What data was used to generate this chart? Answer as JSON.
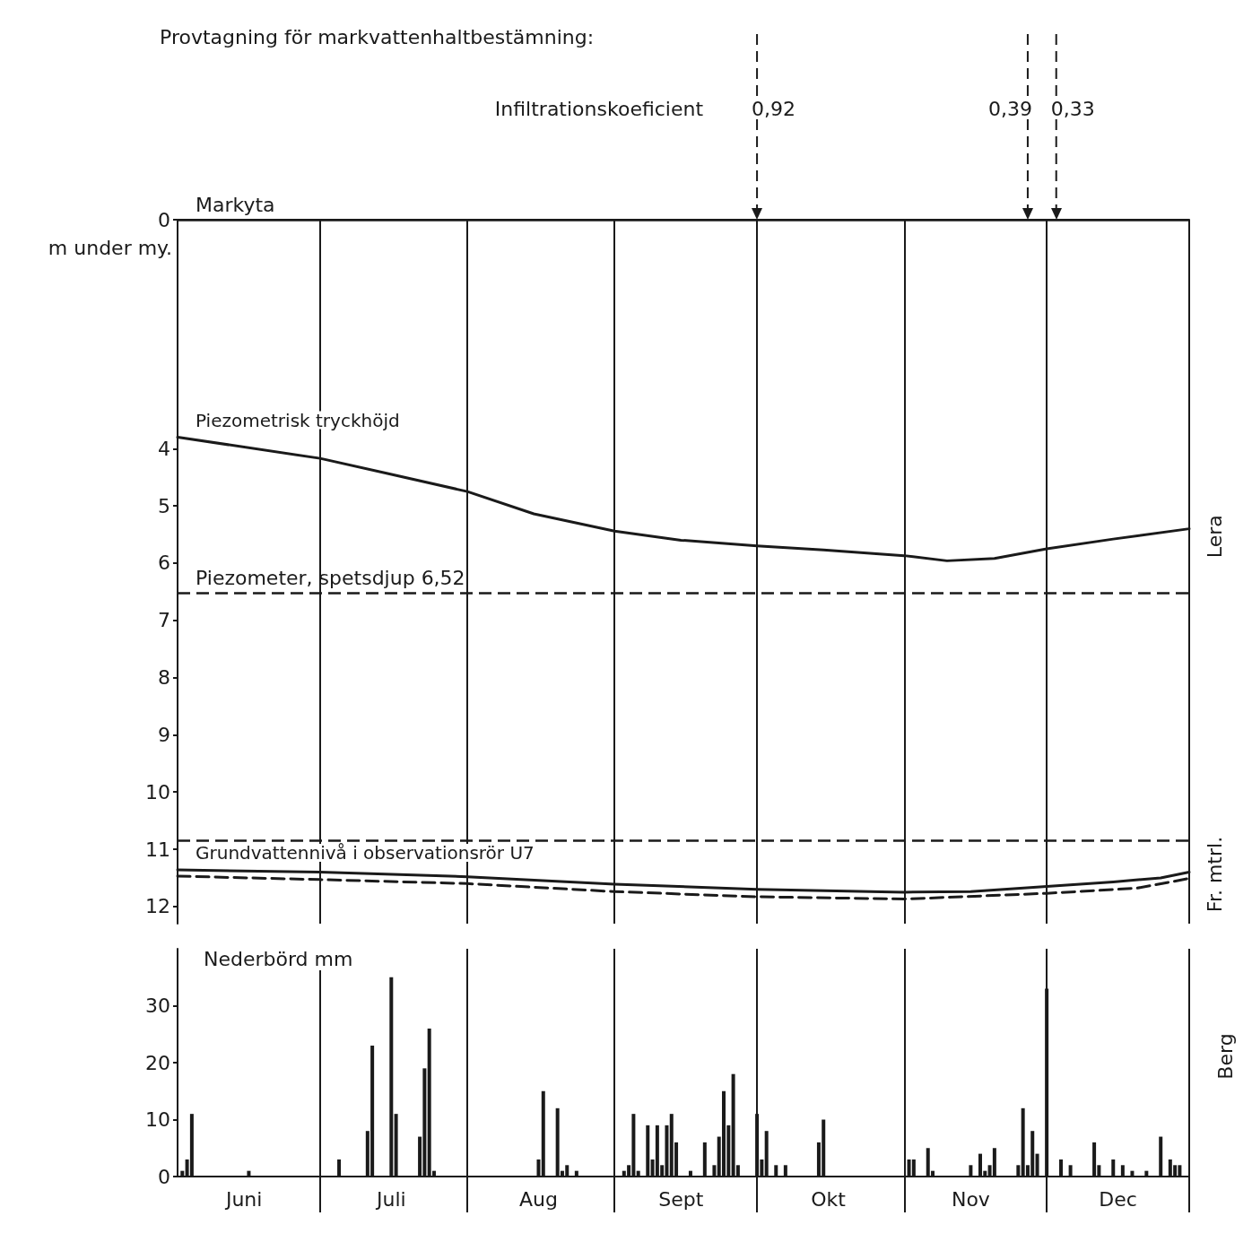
{
  "chart_data": [
    {
      "type": "line",
      "annotations": [
        "Provtagning för markvattenhaltbestämning:",
        "Infiltrationskoeficient",
        "Lera",
        "Fr. mtrl."
      ],
      "ylabel": "m under my.",
      "series": [
        {
          "name": "Piezometrisk tryckhöjd",
          "color": "#1a1a1a",
          "x": [
            "--06-01",
            "--07-01",
            "--07-15",
            "--08-01",
            "--08-15",
            "--09-01",
            "--09-15",
            "--10-01",
            "--10-15",
            "--11-01",
            "--11-10",
            "--11-20",
            "--12-01",
            "--12-15",
            "--12-31"
          ],
          "values": [
            3.8,
            4.17,
            4.43,
            4.75,
            5.14,
            5.44,
            5.6,
            5.7,
            5.77,
            5.87,
            5.96,
            5.92,
            5.75,
            5.58,
            5.4
          ]
        },
        {
          "name": "Grundvattennivå i observationsrör U7",
          "color": "#1a1a1a",
          "x": [
            "--06-01",
            "--07-01",
            "--08-01",
            "--09-01",
            "--10-01",
            "--11-01",
            "--11-15",
            "--12-01",
            "--12-15",
            "--12-25",
            "--12-31"
          ],
          "values": [
            11.36,
            11.4,
            11.48,
            11.61,
            11.7,
            11.75,
            11.74,
            11.65,
            11.57,
            11.5,
            11.4
          ]
        },
        {
          "color": "#1a1a1a",
          "line_style": "dashed",
          "x": [
            "--06-01",
            "--07-01",
            "--08-01",
            "--09-01",
            "--10-01",
            "--11-01",
            "--12-01",
            "--12-20",
            "--12-31"
          ],
          "values": [
            11.47,
            11.53,
            11.6,
            11.74,
            11.83,
            11.87,
            11.77,
            11.68,
            11.51
          ]
        }
      ],
      "xlim": [
        "--06-01",
        "--12-31"
      ],
      "xticks": [
        {
          "value": "--06-01",
          "label": null
        },
        {
          "value": "--07-01",
          "label": null
        },
        {
          "value": "--08-01",
          "label": null
        },
        {
          "value": "--09-01",
          "label": null
        },
        {
          "value": "--10-01",
          "label": null
        },
        {
          "value": "--11-01",
          "label": null
        },
        {
          "value": "--12-01",
          "label": null
        },
        {
          "value": "--12-31",
          "label": null
        }
      ],
      "ylim": [
        12.3,
        0
      ],
      "yticks": [
        0,
        4,
        5,
        6,
        7,
        8,
        9,
        10,
        11,
        12
      ],
      "ref_lines": [
        {
          "axis": "y",
          "value": 0,
          "label": "Markyta"
        },
        {
          "axis": "y",
          "value": 6.52,
          "label": "Piezometer, spetsdjup 6,52",
          "line_style": "dashed"
        },
        {
          "axis": "y",
          "value": 10.85,
          "line_style": "dashed"
        },
        {
          "axis": "x",
          "value": "--10-01",
          "label": "0,92",
          "line_style": "dashed"
        },
        {
          "axis": "x",
          "value": "--11-27",
          "label": "0,39",
          "line_style": "dashed"
        },
        {
          "axis": "x",
          "value": "--12-03",
          "label": "0,33",
          "line_style": "dashed"
        }
      ],
      "grid": "x",
      "tick_labels": "y",
      "marker": "none",
      "line_style": "solid"
    },
    {
      "type": "bar",
      "title": "Nederbörd mm",
      "annotations": [
        "Berg"
      ],
      "color": "#1a1a1a",
      "x": [
        "--06-02",
        "--06-03",
        "--06-04",
        "--06-16",
        "--07-05",
        "--07-11",
        "--07-12",
        "--07-16",
        "--07-17",
        "--07-22",
        "--07-23",
        "--07-24",
        "--07-25",
        "--08-16",
        "--08-17",
        "--08-20",
        "--08-21",
        "--08-22",
        "--08-24",
        "--09-03",
        "--09-04",
        "--09-05",
        "--09-06",
        "--09-08",
        "--09-09",
        "--09-10",
        "--09-11",
        "--09-12",
        "--09-13",
        "--09-14",
        "--09-17",
        "--09-20",
        "--09-22",
        "--09-23",
        "--09-24",
        "--09-25",
        "--09-26",
        "--09-27",
        "--10-01",
        "--10-02",
        "--10-03",
        "--10-05",
        "--10-07",
        "--10-14",
        "--10-15",
        "--11-02",
        "--11-03",
        "--11-06",
        "--11-07",
        "--11-15",
        "--11-17",
        "--11-18",
        "--11-19",
        "--11-20",
        "--11-25",
        "--11-26",
        "--11-27",
        "--11-28",
        "--11-29",
        "--12-01",
        "--12-04",
        "--12-06",
        "--12-11",
        "--12-12",
        "--12-15",
        "--12-17",
        "--12-19",
        "--12-22",
        "--12-25",
        "--12-27",
        "--12-28",
        "--12-29"
      ],
      "values": [
        1,
        3,
        11,
        1,
        3,
        8,
        23,
        35,
        11,
        7,
        19,
        26,
        1,
        3,
        15,
        12,
        1,
        2,
        1,
        1,
        2,
        11,
        1,
        9,
        3,
        9,
        2,
        9,
        11,
        6,
        1,
        6,
        2,
        7,
        15,
        9,
        18,
        2,
        11,
        3,
        8,
        2,
        2,
        6,
        10,
        3,
        3,
        5,
        1,
        2,
        4,
        1,
        2,
        5,
        2,
        12,
        2,
        8,
        4,
        33,
        3,
        2,
        6,
        2,
        3,
        2,
        1,
        1,
        7,
        3,
        2,
        2
      ],
      "xlim": [
        "--06-01",
        "--12-31"
      ],
      "xticks": [
        {
          "value": "--07-01",
          "label": null
        },
        {
          "value": "--08-01",
          "label": null
        },
        {
          "value": "--09-01",
          "label": null
        },
        {
          "value": "--10-01",
          "label": null
        },
        {
          "value": "--11-01",
          "label": null
        },
        {
          "value": "--12-01",
          "label": null
        },
        {
          "value": "--12-31",
          "label": null
        },
        {
          "value": "--06-15",
          "label": "Juni"
        },
        {
          "value": "--07-16",
          "label": "Juli"
        },
        {
          "value": "--08-16",
          "label": "Aug"
        },
        {
          "value": "--09-15",
          "label": "Sept"
        },
        {
          "value": "--10-16",
          "label": "Okt"
        },
        {
          "value": "--11-15",
          "label": "Nov"
        },
        {
          "value": "--12-16",
          "label": "Dec"
        }
      ],
      "ylim": [
        0,
        40
      ],
      "yticks": [
        0,
        10,
        20,
        30
      ],
      "grid": "x"
    }
  ]
}
